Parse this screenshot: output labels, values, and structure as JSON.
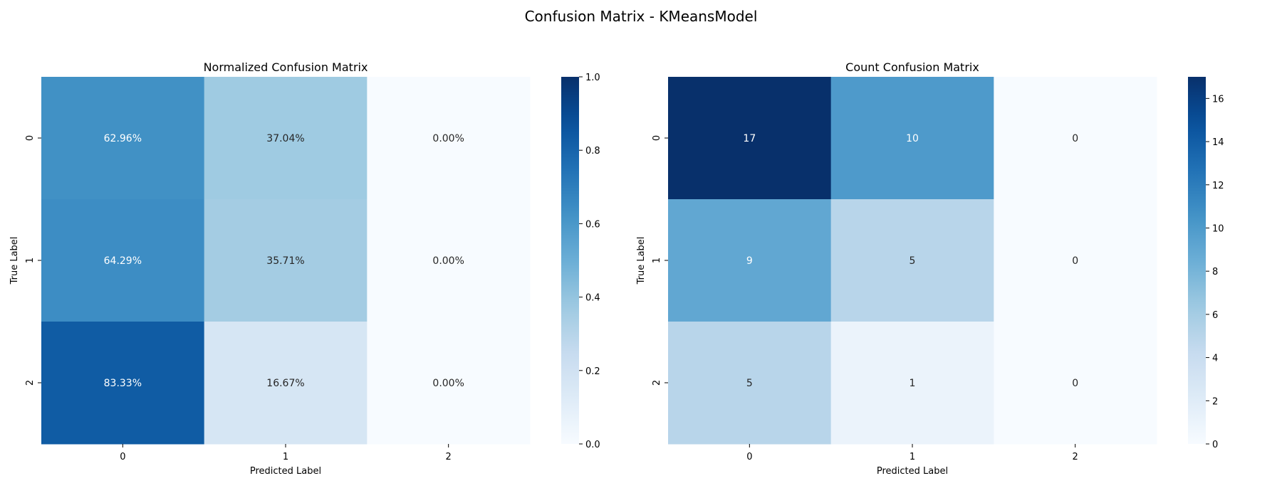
{
  "figure": {
    "title": "Confusion Matrix - KMeansModel"
  },
  "chart_data": [
    {
      "type": "heatmap",
      "title": "Normalized Confusion Matrix",
      "xlabel": "Predicted Label",
      "ylabel": "True Label",
      "x_categories": [
        "0",
        "1",
        "2"
      ],
      "y_categories": [
        "0",
        "1",
        "2"
      ],
      "values": [
        [
          0.6296,
          0.3704,
          0.0
        ],
        [
          0.6429,
          0.3571,
          0.0
        ],
        [
          0.8333,
          0.1667,
          0.0
        ]
      ],
      "cell_labels": [
        [
          "62.96%",
          "37.04%",
          "0.00%"
        ],
        [
          "64.29%",
          "35.71%",
          "0.00%"
        ],
        [
          "83.33%",
          "16.67%",
          "0.00%"
        ]
      ],
      "colorbar": {
        "min": 0.0,
        "max": 1.0,
        "ticks": [
          0.0,
          0.2,
          0.4,
          0.6,
          0.8,
          1.0
        ],
        "tick_labels": [
          "0.0",
          "0.2",
          "0.4",
          "0.6",
          "0.8",
          "1.0"
        ]
      },
      "colormap": "Blues",
      "grid": false
    },
    {
      "type": "heatmap",
      "title": "Count Confusion Matrix",
      "xlabel": "Predicted Label",
      "ylabel": "True Label",
      "x_categories": [
        "0",
        "1",
        "2"
      ],
      "y_categories": [
        "0",
        "1",
        "2"
      ],
      "values": [
        [
          17,
          10,
          0
        ],
        [
          9,
          5,
          0
        ],
        [
          5,
          1,
          0
        ]
      ],
      "cell_labels": [
        [
          "17",
          "10",
          "0"
        ],
        [
          "9",
          "5",
          "0"
        ],
        [
          "5",
          "1",
          "0"
        ]
      ],
      "colorbar": {
        "min": 0,
        "max": 17,
        "ticks": [
          0,
          2,
          4,
          6,
          8,
          10,
          12,
          14,
          16
        ],
        "tick_labels": [
          "0",
          "2",
          "4",
          "6",
          "8",
          "10",
          "12",
          "14",
          "16"
        ]
      },
      "colormap": "Blues",
      "grid": false
    }
  ]
}
